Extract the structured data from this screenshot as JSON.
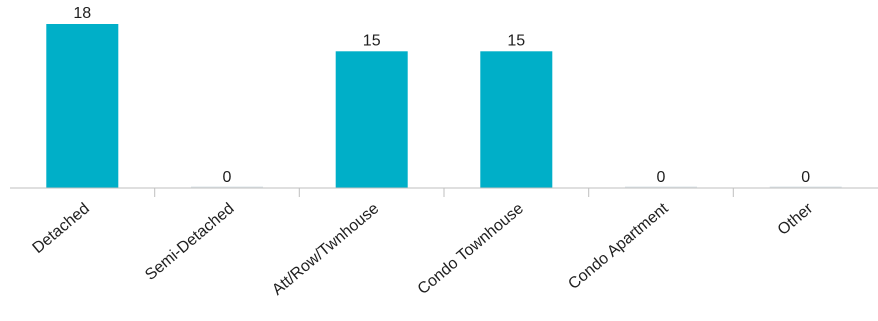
{
  "chart_data": {
    "type": "bar",
    "categories": [
      "Detached",
      "Semi-Detached",
      "Att/Row/Twnhouse",
      "Condo Townhouse",
      "Condo Apartment",
      "Other"
    ],
    "values": [
      18,
      0,
      15,
      15,
      0,
      0
    ],
    "title": "",
    "xlabel": "",
    "ylabel": "",
    "ylim": [
      0,
      18
    ],
    "grid": false,
    "legend": "none",
    "bar_color": "#00AFC8",
    "zero_bar_color": "#DDE6EA",
    "axis_color": "#BFBFBF"
  }
}
